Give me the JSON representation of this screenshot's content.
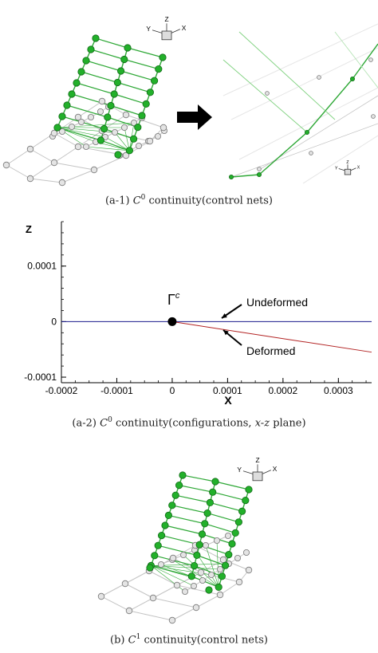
{
  "figure": {
    "panel_a1": {
      "caption_prefix": "(a-1)",
      "caption_symbol": "C",
      "caption_sup": "0",
      "caption_text": "continuity(control nets)",
      "axes_labels": {
        "z": "Z",
        "y": "Y",
        "x": "X"
      },
      "arrow_icon": "right-arrow-icon"
    },
    "panel_a2": {
      "caption_prefix": "(a-2)",
      "caption_symbol": "C",
      "caption_sup": "0",
      "caption_mid": "continuity(configurations,",
      "caption_plane": "x-z",
      "caption_end": "plane)",
      "gamma_label": "Γ",
      "gamma_sup": "c",
      "undeformed_label": "Undeformed",
      "deformed_label": "Deformed"
    },
    "panel_b": {
      "caption_prefix": "(b)",
      "caption_symbol": "C",
      "caption_sup": "1",
      "caption_text": "continuity(control nets)",
      "axes_labels": {
        "z": "Z",
        "y": "Y",
        "x": "X"
      }
    }
  },
  "chart_data": {
    "type": "line",
    "xlabel": "X",
    "ylabel": "Z",
    "xlim": [
      -0.0002,
      0.00036
    ],
    "ylim": [
      -0.00011,
      0.00018
    ],
    "xticks": [
      "-0.0002",
      "-0.0001",
      "0",
      "0.0001",
      "0.0002",
      "0.0003"
    ],
    "xtick_values": [
      -0.0002,
      -0.0001,
      0,
      0.0001,
      0.0002,
      0.0003
    ],
    "yticks": [
      "-0.0001",
      "0",
      "0.0001"
    ],
    "ytick_values": [
      -0.0001,
      0,
      0.0001
    ],
    "grid": false,
    "series": [
      {
        "name": "Undeformed",
        "color": "#1a1a8c",
        "x": [
          -0.0002,
          0.00036
        ],
        "y": [
          0,
          0
        ]
      },
      {
        "name": "Deformed",
        "color": "#b22222",
        "x": [
          0,
          0.00036
        ],
        "y": [
          0,
          -5.5e-05
        ]
      }
    ],
    "marker": {
      "x": 0,
      "y": 0,
      "label": "Γc"
    }
  },
  "colors": {
    "green_node": "#22b02a",
    "green_line": "#2ea836",
    "grey_node": "#e4e4e4",
    "grey_line": "#c4c4c4"
  }
}
